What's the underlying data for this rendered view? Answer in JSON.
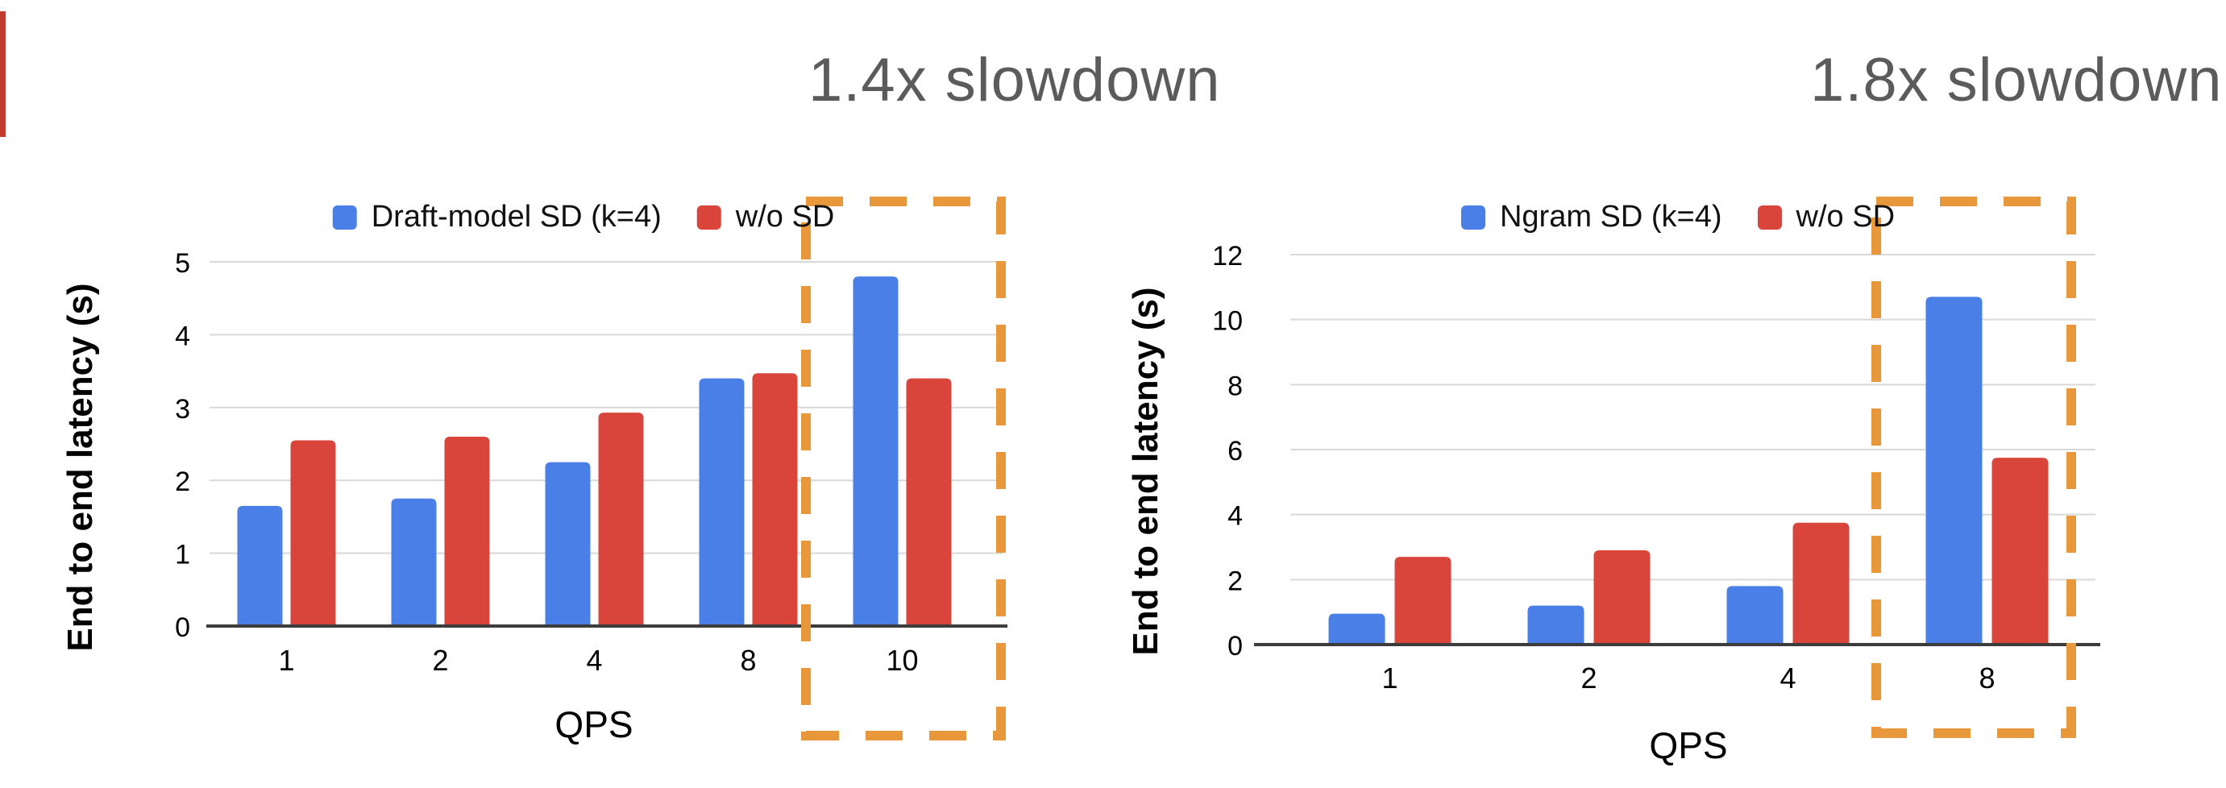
{
  "page": {
    "background": "#ffffff",
    "edge_artifact_color": "#c23b31"
  },
  "highlight_color": "#e8973a",
  "annotation_color": "#5b5b5b",
  "chart_data": [
    {
      "type": "bar",
      "annotation": "1.4x slowdown",
      "categories": [
        "1",
        "2",
        "4",
        "8",
        "10"
      ],
      "series": [
        {
          "name": "Draft-model SD (k=4)",
          "color": "#4a7fe7",
          "values": [
            1.65,
            1.75,
            2.25,
            3.4,
            4.8
          ]
        },
        {
          "name": "w/o SD",
          "color": "#d9453b",
          "values": [
            2.55,
            2.6,
            2.93,
            3.47,
            3.4
          ]
        }
      ],
      "xlabel": "QPS",
      "ylabel": "End to end latency (s)",
      "ylim": [
        0,
        5
      ],
      "ytick_step": 1,
      "yticks": [
        0,
        1,
        2,
        3,
        4,
        5
      ],
      "grid": true,
      "legend_position": "top",
      "highlighted_category": "10",
      "highlight_style": "orange-dashed-box"
    },
    {
      "type": "bar",
      "annotation": "1.8x slowdown",
      "categories": [
        "1",
        "2",
        "4",
        "8"
      ],
      "series": [
        {
          "name": "Ngram SD (k=4)",
          "color": "#4a7fe7",
          "values": [
            0.95,
            1.2,
            1.8,
            10.7
          ]
        },
        {
          "name": "w/o SD",
          "color": "#d9453b",
          "values": [
            2.7,
            2.9,
            3.75,
            5.75
          ]
        }
      ],
      "xlabel": "QPS",
      "ylabel": "End to end latency (s)",
      "ylim": [
        0,
        12
      ],
      "ytick_step": 2,
      "yticks": [
        0,
        2,
        4,
        6,
        8,
        10,
        12
      ],
      "grid": true,
      "legend_position": "top",
      "highlighted_category": "8",
      "highlight_style": "orange-dashed-box"
    }
  ]
}
